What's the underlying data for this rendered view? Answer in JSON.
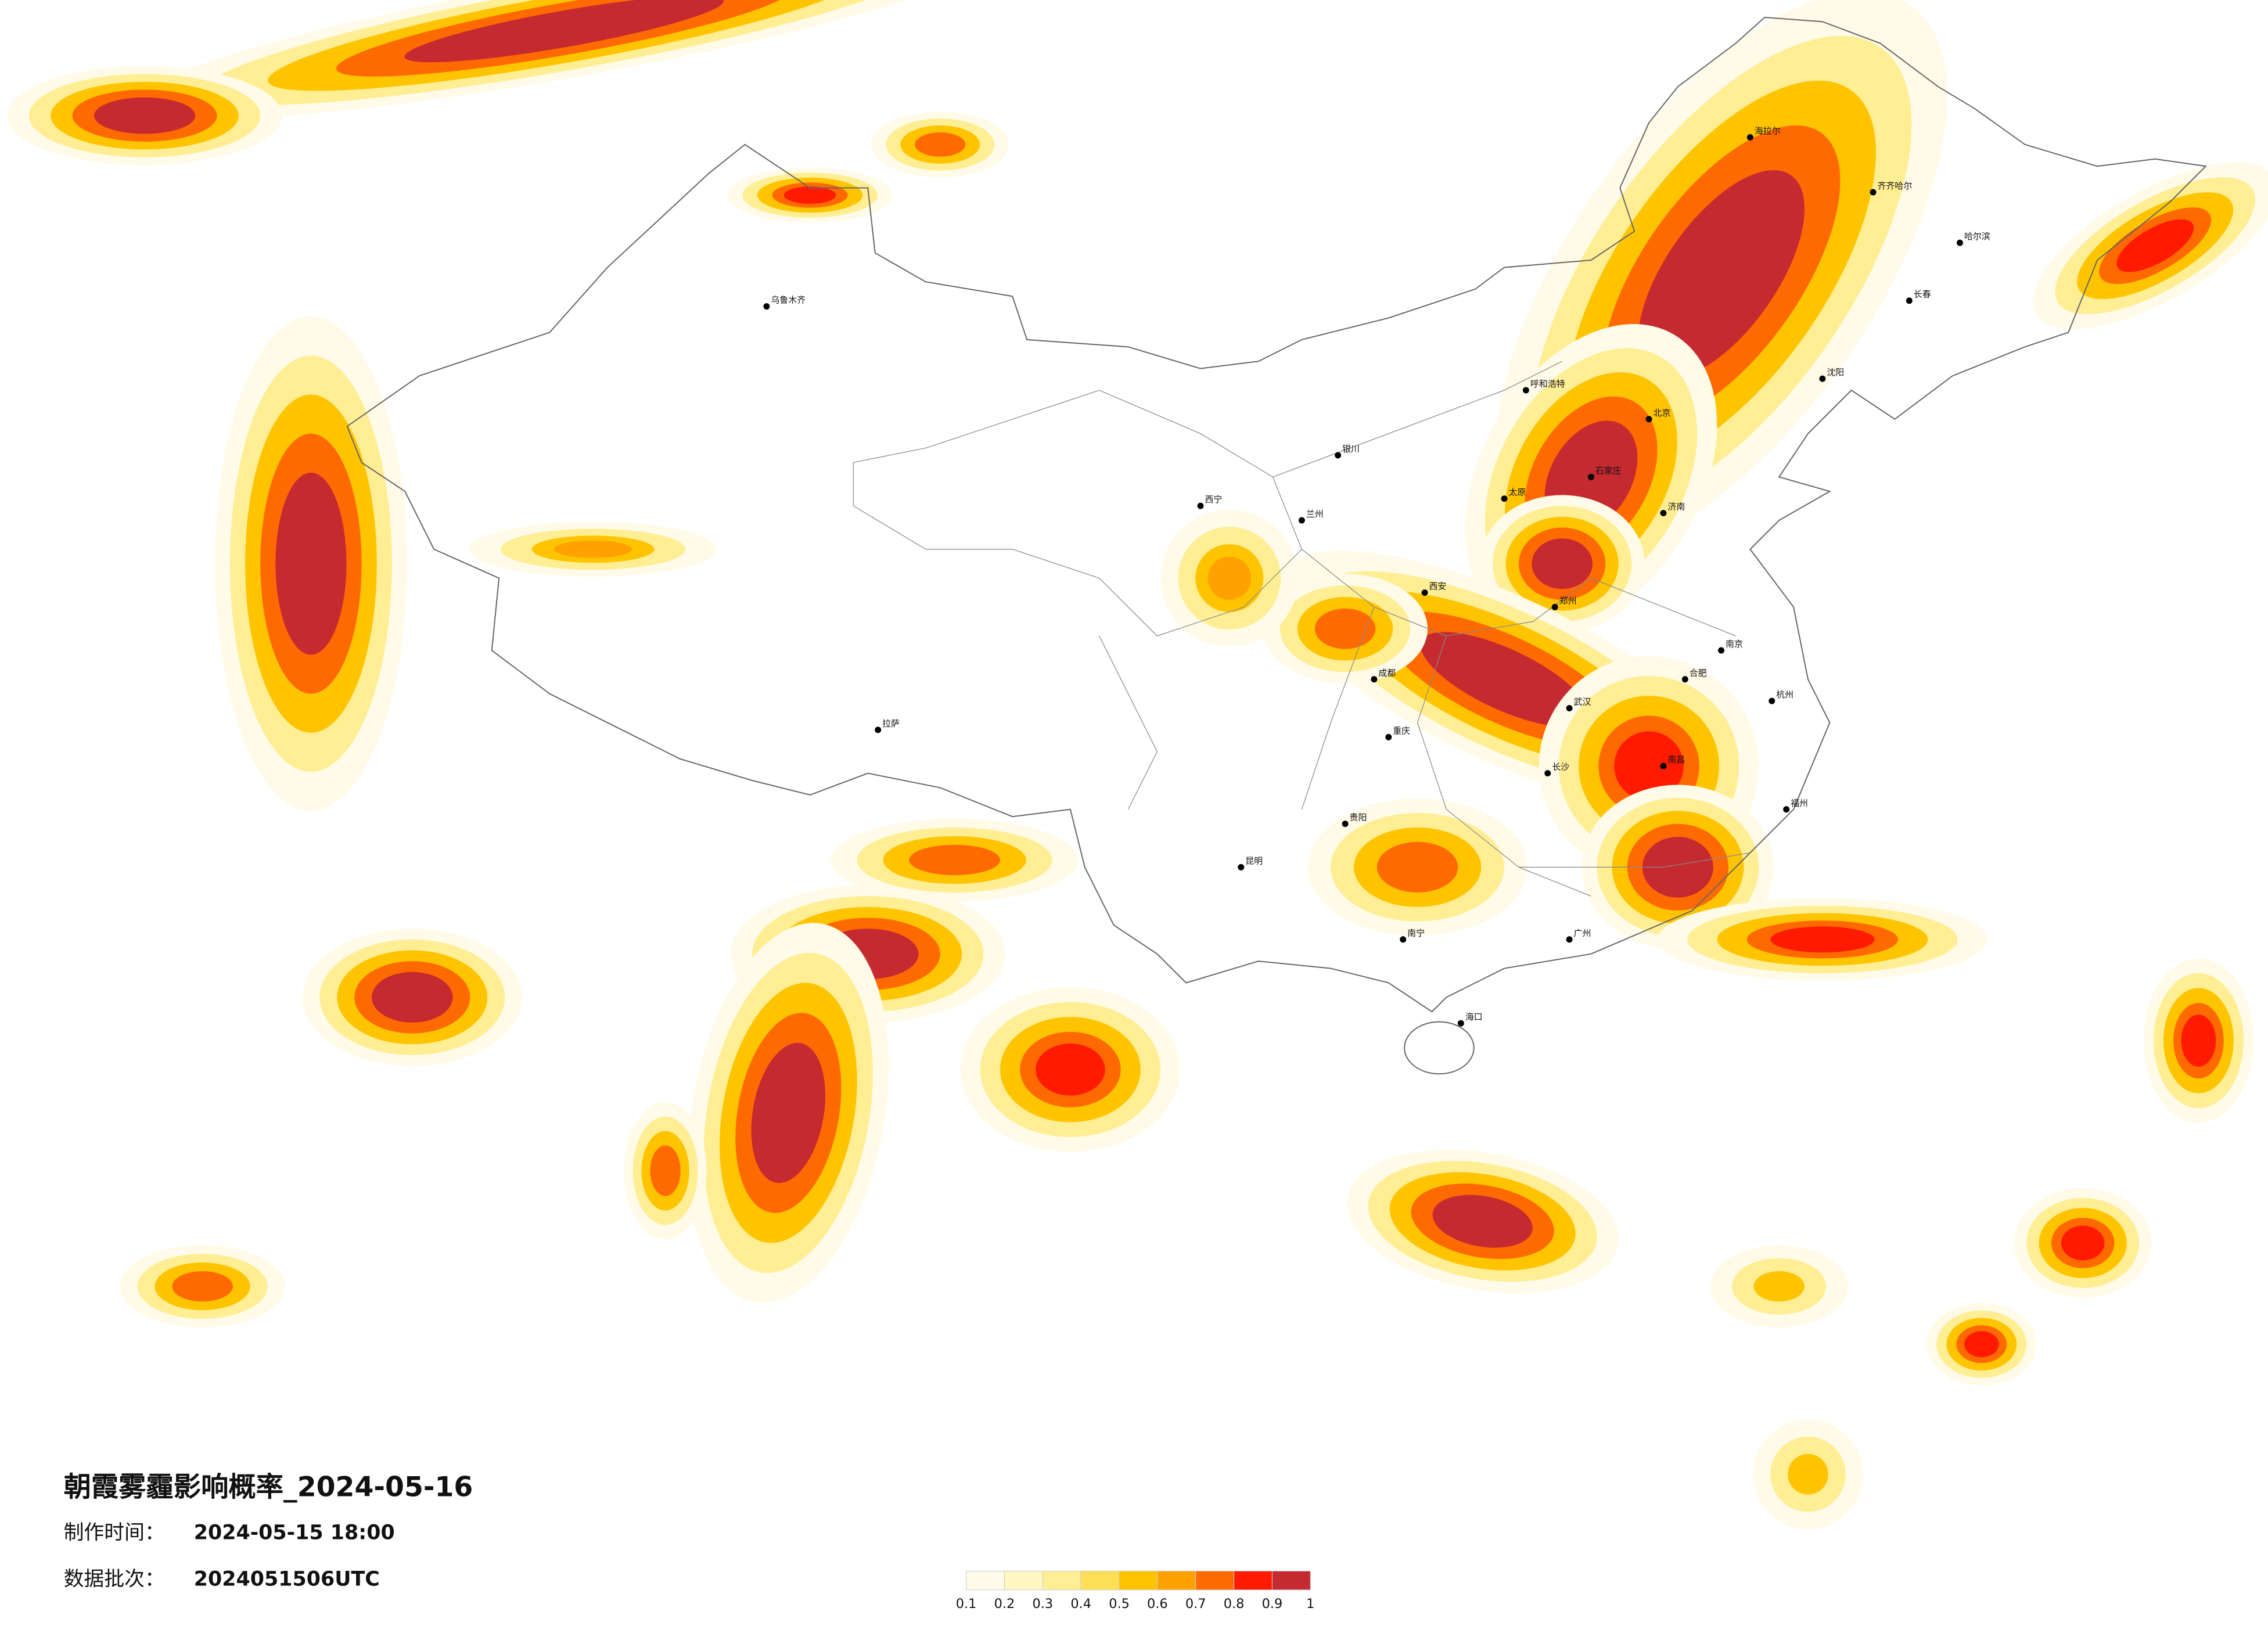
{
  "title": "朝霞雾霾影响概率_2024-05-16",
  "info": [
    {
      "label": "制作时间：",
      "value": "2024-05-15 18:00"
    },
    {
      "label": "数据批次：",
      "value": "2024051506UTC"
    }
  ],
  "legend": {
    "colors": [
      "#fffbe8",
      "#fff6c2",
      "#ffee94",
      "#ffdf55",
      "#ffc400",
      "#ffa200",
      "#ff6a00",
      "#ff1a00",
      "#c42a30"
    ],
    "ticks": [
      0.1,
      0.2,
      0.3,
      0.4,
      0.5,
      0.6,
      0.7,
      0.8,
      0.9,
      1
    ]
  },
  "cities": [
    "海拉尔",
    "齐齐哈尔",
    "哈尔滨",
    "长春",
    "沈阳",
    "呼和浩特",
    "北京",
    "石家庄",
    "太原",
    "济南",
    "郑州",
    "西安",
    "兰州",
    "西宁",
    "银川",
    "乌鲁木齐",
    "拉萨",
    "成都",
    "重庆",
    "武汉",
    "长沙",
    "南昌",
    "合肥",
    "南京",
    "杭州",
    "福州",
    "广州",
    "南宁",
    "贵阳",
    "昆明",
    "海口"
  ]
}
